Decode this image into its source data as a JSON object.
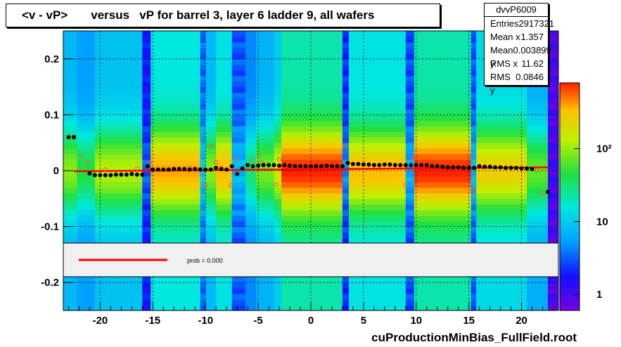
{
  "title": "<v - vP>       versus   vP for barrel 3, layer 6 ladder 9, all wafers",
  "stats": {
    "name": "dvvP6009",
    "rows": [
      {
        "label": "Entries",
        "value": "2917321"
      },
      {
        "label": "Mean x",
        "value": "1.357"
      },
      {
        "label": "Mean y",
        "value": "0.003899"
      },
      {
        "label": "RMS x",
        "value": "11.62"
      },
      {
        "label": "RMS y",
        "value": "0.0846"
      }
    ]
  },
  "fit_legend": "prob = 0.000",
  "footer": "cuProductionMinBias_FullField.root",
  "colors": {
    "fit_line": "#ff0000",
    "profile_points": "#000000",
    "open_markers": "#ff5050",
    "frame": "#000000"
  },
  "chart_data": {
    "type": "heatmap",
    "xlim": [
      -23.5,
      23.5
    ],
    "ylim": [
      -0.25,
      0.25
    ],
    "x_ticks": [
      -20,
      -15,
      -10,
      -5,
      0,
      5,
      10,
      15,
      20
    ],
    "y_ticks": [
      0.2,
      0.1,
      0,
      -0.1,
      -0.2
    ],
    "x_tick_labels": [
      "-20",
      "-15",
      "-10",
      "-5",
      "0",
      "5",
      "10",
      "15",
      "20"
    ],
    "y_tick_labels": [
      "0.2",
      "0.1",
      "0",
      "-0.1",
      "-0.2"
    ],
    "grid": true,
    "color_scale": {
      "type": "log",
      "tick_labels": [
        "1",
        "10",
        "10²"
      ],
      "tick_values": [
        1,
        10,
        100
      ]
    },
    "fit_line": {
      "x": [
        -22.5,
        22.5
      ],
      "y": [
        -0.001,
        0.006
      ]
    },
    "profile_points": {
      "x": [
        -23,
        -22.5,
        -21,
        -20.5,
        -20,
        -19.5,
        -19,
        -18.5,
        -18,
        -17.5,
        -17,
        -16.5,
        -16,
        -15.5,
        -15,
        -14.5,
        -14,
        -13.5,
        -13,
        -12.5,
        -12,
        -11.5,
        -11,
        -10.5,
        -10,
        -9.5,
        -9,
        -8.5,
        -8,
        -7.5,
        -7,
        -6.5,
        -6,
        -5.5,
        -5,
        -4.5,
        -4,
        -3.5,
        -3,
        -2.5,
        -2,
        -1.5,
        -1,
        -0.5,
        0,
        0.5,
        1,
        1.5,
        2,
        2.5,
        3,
        3.5,
        4,
        4.5,
        5,
        5.5,
        6,
        6.5,
        7,
        7.5,
        8,
        8.5,
        9,
        9.5,
        10,
        10.5,
        11,
        11.5,
        12,
        12.5,
        13,
        13.5,
        14,
        14.5,
        15,
        15.5,
        16,
        16.5,
        17,
        17.5,
        18,
        18.5,
        19,
        19.5,
        20,
        20.5,
        21,
        22.5
      ],
      "y": [
        0.06,
        0.06,
        -0.005,
        -0.008,
        -0.008,
        -0.008,
        -0.008,
        -0.007,
        -0.007,
        -0.007,
        -0.006,
        -0.007,
        -0.007,
        0.008,
        0.002,
        0.002,
        0.002,
        0.002,
        0.003,
        0.003,
        0.003,
        0.002,
        0.003,
        0.002,
        0.002,
        0.002,
        0.005,
        0.003,
        0.002,
        0.008,
        -0.006,
        0.004,
        0.01,
        0.008,
        0.009,
        0.01,
        0.01,
        0.01,
        0.009,
        0.01,
        0.009,
        0.008,
        0.008,
        0.008,
        0.008,
        0.008,
        0.008,
        0.009,
        0.008,
        0.008,
        0.008,
        0.014,
        0.012,
        0.012,
        0.011,
        0.011,
        0.01,
        0.01,
        0.011,
        0.011,
        0.01,
        0.01,
        0.01,
        0.01,
        0.01,
        0.01,
        0.01,
        0.008,
        0.008,
        0.007,
        0.006,
        0.006,
        0.006,
        0.005,
        0.005,
        0.005,
        0.008,
        0.007,
        0.007,
        0.006,
        0.006,
        0.005,
        0.005,
        0.005,
        0.004,
        0.004,
        0.003,
        -0.038
      ]
    },
    "open_markers": {
      "x": [
        -22.5,
        -21.8,
        -21.2,
        -19.5,
        -16.5,
        -15.3,
        -13,
        -11.5,
        -10,
        -9.5,
        -9,
        -8.5,
        -7.6,
        -7,
        -5.6,
        -4.9,
        -4.7,
        -3.3,
        -3,
        3.2,
        9,
        9.6,
        15.5,
        21.5,
        22
      ],
      "y": [
        0.06,
        0.027,
        0.015,
        0.002,
        0.004,
        0.014,
        0.003,
        0.005,
        -0.026,
        0.044,
        0.015,
        0.006,
        -0.026,
        0.021,
        0.019,
        0.028,
        0.015,
        -0.025,
        0.02,
        0.044,
        -0.025,
        0.023,
        -0.037,
        0.001,
        -0.04
      ]
    },
    "columns": [
      {
        "x0": -23.5,
        "x1": -22.2,
        "level": 0.7
      },
      {
        "x0": -22.2,
        "x1": -20.5,
        "level": 0.6
      },
      {
        "x0": -20.5,
        "x1": -16.0,
        "level": 0.74
      },
      {
        "x0": -16.0,
        "x1": -15.2,
        "level": 0.2
      },
      {
        "x0": -15.2,
        "x1": -10.5,
        "level": 0.9
      },
      {
        "x0": -10.5,
        "x1": -10.0,
        "level": 0.35
      },
      {
        "x0": -10.0,
        "x1": -9.0,
        "level": 0.7
      },
      {
        "x0": -9.0,
        "x1": -7.5,
        "level": 0.88
      },
      {
        "x0": -7.5,
        "x1": -6.2,
        "level": 0.32
      },
      {
        "x0": -6.2,
        "x1": -5.2,
        "level": 0.55
      },
      {
        "x0": -5.2,
        "x1": -3.5,
        "level": 0.68
      },
      {
        "x0": -3.5,
        "x1": -2.8,
        "level": 0.78
      },
      {
        "x0": -2.8,
        "x1": 3.0,
        "level": 1.0
      },
      {
        "x0": 3.0,
        "x1": 3.6,
        "level": 0.25
      },
      {
        "x0": 3.6,
        "x1": 9.0,
        "level": 0.88
      },
      {
        "x0": 9.0,
        "x1": 9.8,
        "level": 0.3
      },
      {
        "x0": 9.8,
        "x1": 15.2,
        "level": 1.0
      },
      {
        "x0": 15.2,
        "x1": 15.7,
        "level": 0.32
      },
      {
        "x0": 15.7,
        "x1": 20.5,
        "level": 0.84
      },
      {
        "x0": 20.5,
        "x1": 22.5,
        "level": 0.66
      },
      {
        "x0": 22.5,
        "x1": 23.5,
        "level": 0.05
      }
    ]
  }
}
